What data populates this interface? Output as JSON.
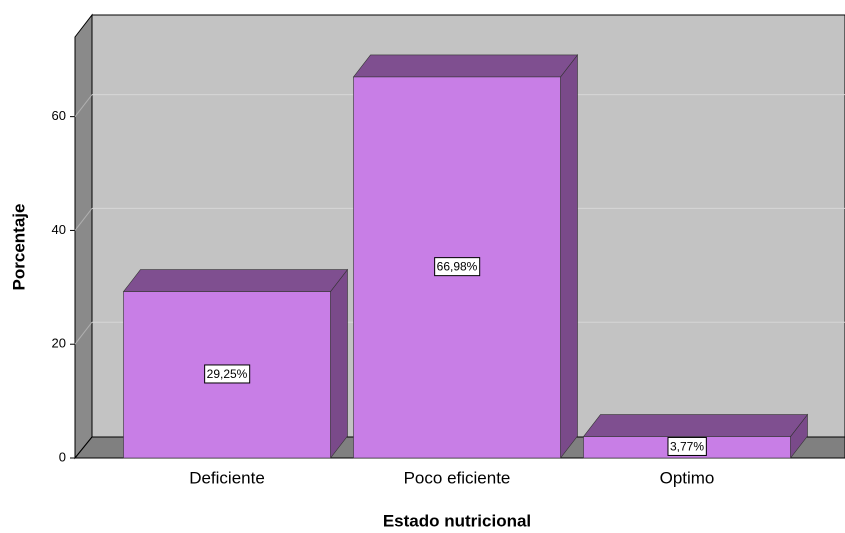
{
  "chart_data": {
    "type": "bar3d",
    "x_label": "Estado nutricional",
    "y_label": "Porcentaje",
    "categories": [
      "Deficiente",
      "Poco eficiente",
      "Optimo"
    ],
    "values": [
      29.25,
      66.98,
      3.77
    ],
    "value_labels": [
      "29,25%",
      "66,98%",
      "3,77%"
    ],
    "color": "#c87ee6",
    "ylim": [
      0,
      74
    ],
    "yticks": [
      0,
      20,
      40,
      60
    ],
    "grid": true
  }
}
